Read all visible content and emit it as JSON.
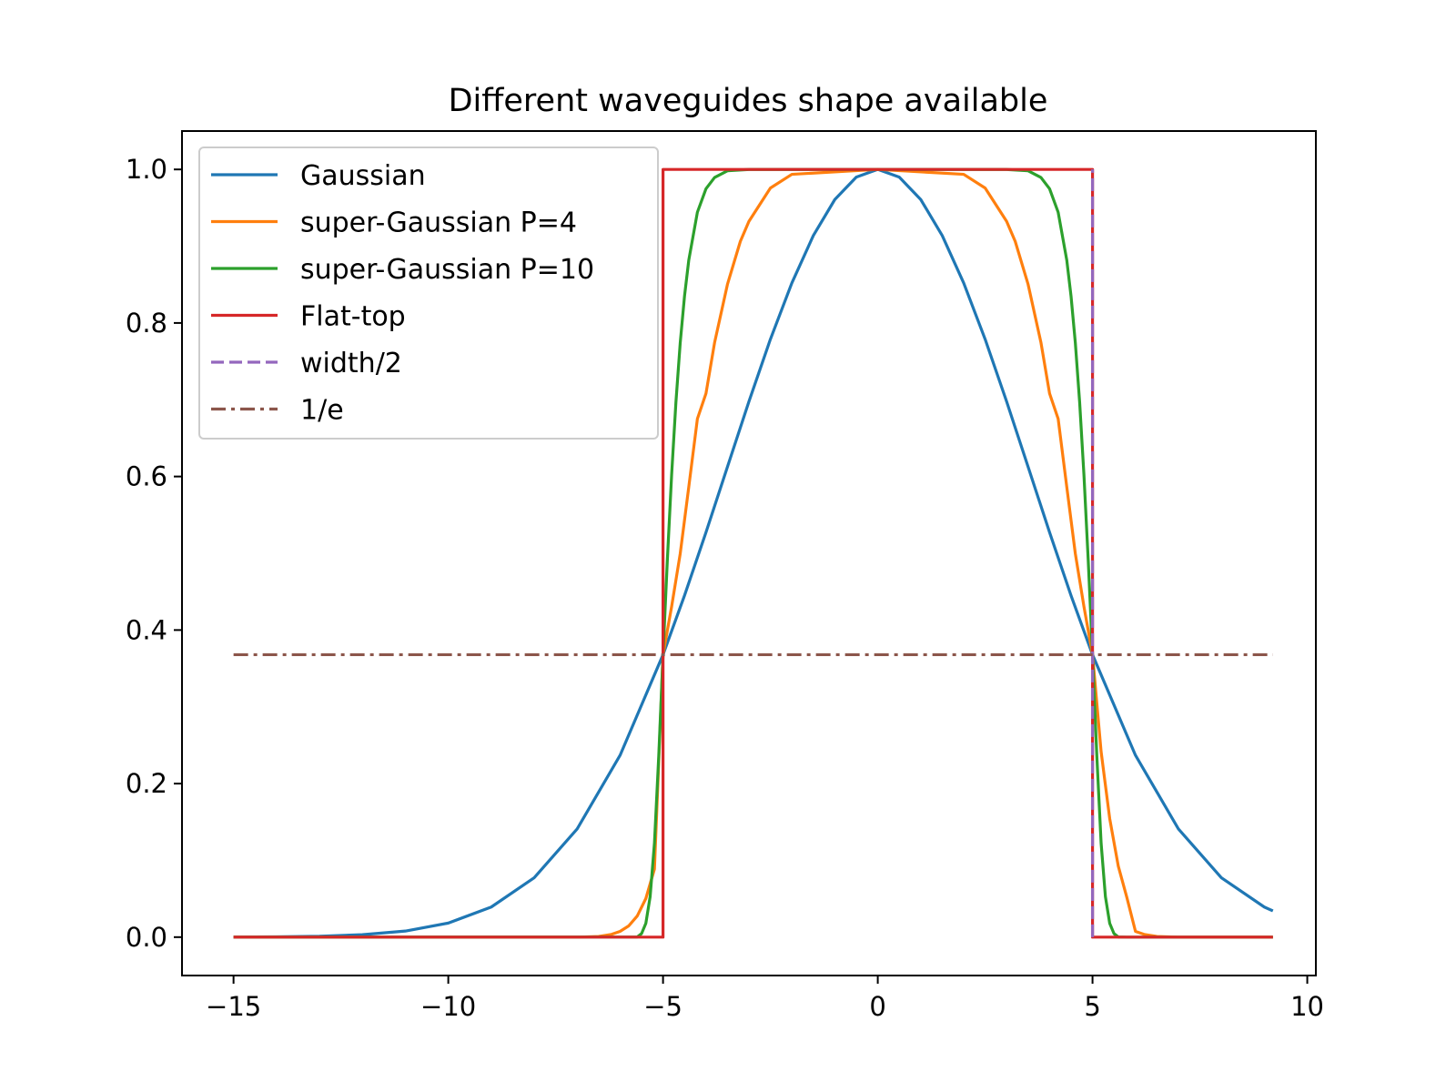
{
  "chart_data": {
    "type": "line",
    "title": "Different waveguides shape available",
    "xlabel": "",
    "ylabel": "",
    "xlim": [
      -16.2,
      10.2
    ],
    "ylim": [
      -0.05,
      1.05
    ],
    "x_ticks": [
      -15,
      -10,
      -5,
      0,
      5,
      10
    ],
    "x_tick_labels": [
      "−15",
      "−10",
      "−5",
      "0",
      "5",
      "10"
    ],
    "y_ticks": [
      0.0,
      0.2,
      0.4,
      0.6,
      0.8,
      1.0
    ],
    "y_tick_labels": [
      "0.0",
      "0.2",
      "0.4",
      "0.6",
      "0.8",
      "1.0"
    ],
    "grid": false,
    "legend_position": "upper-left",
    "series": [
      {
        "name": "Gaussian",
        "color": "#1f77b4",
        "style": "solid",
        "x": [
          -15,
          -14,
          -13,
          -12,
          -11,
          -10,
          -9,
          -8,
          -7,
          -6,
          -5,
          -4.5,
          -4,
          -3.5,
          -3,
          -2.5,
          -2,
          -1.5,
          -1,
          -0.5,
          0,
          0.5,
          1,
          1.5,
          2,
          2.5,
          3,
          3.5,
          4,
          4.5,
          5,
          6,
          7,
          8,
          9,
          9.2
        ],
        "y": [
          0.0001,
          0.0004,
          0.0011,
          0.0032,
          0.0079,
          0.0183,
          0.0392,
          0.0773,
          0.1409,
          0.2369,
          0.3679,
          0.4449,
          0.5273,
          0.6126,
          0.6977,
          0.7788,
          0.8521,
          0.9139,
          0.9608,
          0.99,
          1.0,
          0.99,
          0.9608,
          0.9139,
          0.8521,
          0.7788,
          0.6977,
          0.6126,
          0.5273,
          0.4449,
          0.3679,
          0.2369,
          0.1409,
          0.0773,
          0.0392,
          0.0342
        ]
      },
      {
        "name": "super-Gaussian P=4",
        "color": "#ff7f0e",
        "style": "solid",
        "x": [
          -15,
          -7,
          -6.5,
          -6.2,
          -6,
          -5.8,
          -5.6,
          -5.4,
          -5.2,
          -5,
          -4.8,
          -4.6,
          -4.4,
          -4.2,
          -4,
          -3.8,
          -3.5,
          -3.2,
          -3,
          -2.5,
          -2,
          0,
          2,
          2.5,
          3,
          3.2,
          3.5,
          3.8,
          4,
          4.2,
          4.4,
          4.6,
          4.8,
          5,
          5.2,
          5.4,
          5.6,
          5.8,
          6,
          6.2,
          6.5,
          7,
          9.2
        ],
        "y": [
          0.0,
          0.0,
          0.0009,
          0.0036,
          0.0075,
          0.0146,
          0.0276,
          0.0503,
          0.0887,
          0.3679,
          0.4306,
          0.4994,
          0.5866,
          0.6751,
          0.7082,
          0.7743,
          0.8503,
          0.9063,
          0.9323,
          0.9758,
          0.9936,
          1.0,
          0.9936,
          0.9758,
          0.9323,
          0.9063,
          0.8503,
          0.7743,
          0.7082,
          0.6751,
          0.5866,
          0.4994,
          0.4306,
          0.3679,
          0.2416,
          0.1545,
          0.0925,
          0.0516,
          0.0075,
          0.0036,
          0.0009,
          0.0,
          0.0
        ]
      },
      {
        "name": "super-Gaussian P=10",
        "color": "#2ca02c",
        "style": "solid",
        "x": [
          -15,
          -5.6,
          -5.5,
          -5.4,
          -5.3,
          -5.2,
          -5.1,
          -5,
          -4.9,
          -4.8,
          -4.7,
          -4.6,
          -4.5,
          -4.4,
          -4.2,
          -4,
          -3.8,
          -3.5,
          -3,
          0,
          3,
          3.5,
          3.8,
          4,
          4.2,
          4.4,
          4.5,
          4.6,
          4.7,
          4.8,
          4.9,
          5,
          5.1,
          5.2,
          5.3,
          5.4,
          5.5,
          5.6,
          5.8,
          9.2
        ],
        "y": [
          0.0,
          0.0002,
          0.0046,
          0.018,
          0.0528,
          0.1224,
          0.236,
          0.3679,
          0.4906,
          0.6022,
          0.6968,
          0.7739,
          0.8348,
          0.882,
          0.9442,
          0.9748,
          0.9895,
          0.9982,
          0.9999,
          1.0,
          0.9999,
          0.9982,
          0.9895,
          0.9748,
          0.9442,
          0.882,
          0.8348,
          0.7739,
          0.6968,
          0.6022,
          0.4906,
          0.3679,
          0.236,
          0.1224,
          0.0528,
          0.018,
          0.0046,
          0.0002,
          0.0,
          0.0
        ]
      },
      {
        "name": "Flat-top",
        "color": "#d62728",
        "style": "solid",
        "x": [
          -15,
          -5,
          -5,
          5,
          5,
          9.2
        ],
        "y": [
          0.0,
          0.0,
          1.0,
          1.0,
          0.0,
          0.0
        ]
      },
      {
        "name": "width/2",
        "color": "#9467bd",
        "style": "dashed",
        "x": [
          5,
          5
        ],
        "y": [
          0.0,
          1.0
        ]
      },
      {
        "name": "1/e",
        "color": "#8c564b",
        "style": "dashdot",
        "x": [
          -15,
          9.2
        ],
        "y": [
          0.3679,
          0.3679
        ]
      }
    ]
  }
}
